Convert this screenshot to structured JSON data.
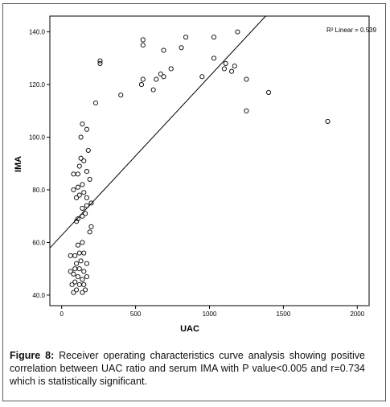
{
  "chart_data": {
    "type": "scatter",
    "xlabel": "UAC",
    "ylabel": "IMA",
    "xlim": [
      -80,
      2080
    ],
    "ylim": [
      36,
      146
    ],
    "xticks": [
      0,
      500,
      1000,
      1500,
      2000
    ],
    "xtick_labels": [
      "0",
      "500",
      "1000",
      "1500",
      "2000"
    ],
    "yticks": [
      40,
      60,
      80,
      100,
      120,
      140
    ],
    "ytick_labels": [
      "40.0",
      "60.0",
      "80.0",
      "100.0",
      "120.0",
      "140.0"
    ],
    "grid": false,
    "fit_line": {
      "label": "R² Linear = 0.539",
      "x0": -80,
      "y0": 57.9,
      "x1": 1380,
      "y1": 146
    },
    "points": [
      {
        "x": 80,
        "y": 41
      },
      {
        "x": 100,
        "y": 42
      },
      {
        "x": 140,
        "y": 41
      },
      {
        "x": 160,
        "y": 42
      },
      {
        "x": 70,
        "y": 44
      },
      {
        "x": 90,
        "y": 45
      },
      {
        "x": 120,
        "y": 44
      },
      {
        "x": 150,
        "y": 44
      },
      {
        "x": 80,
        "y": 48
      },
      {
        "x": 110,
        "y": 47
      },
      {
        "x": 140,
        "y": 46
      },
      {
        "x": 170,
        "y": 47
      },
      {
        "x": 60,
        "y": 49
      },
      {
        "x": 90,
        "y": 50
      },
      {
        "x": 120,
        "y": 50
      },
      {
        "x": 150,
        "y": 49
      },
      {
        "x": 100,
        "y": 52
      },
      {
        "x": 130,
        "y": 53
      },
      {
        "x": 170,
        "y": 52
      },
      {
        "x": 60,
        "y": 55
      },
      {
        "x": 90,
        "y": 55
      },
      {
        "x": 120,
        "y": 56
      },
      {
        "x": 150,
        "y": 56
      },
      {
        "x": 110,
        "y": 59
      },
      {
        "x": 140,
        "y": 60
      },
      {
        "x": 190,
        "y": 64
      },
      {
        "x": 200,
        "y": 66
      },
      {
        "x": 100,
        "y": 68
      },
      {
        "x": 110,
        "y": 69
      },
      {
        "x": 140,
        "y": 70
      },
      {
        "x": 160,
        "y": 71
      },
      {
        "x": 140,
        "y": 73
      },
      {
        "x": 170,
        "y": 74
      },
      {
        "x": 200,
        "y": 75
      },
      {
        "x": 100,
        "y": 77
      },
      {
        "x": 120,
        "y": 78
      },
      {
        "x": 150,
        "y": 79
      },
      {
        "x": 170,
        "y": 77
      },
      {
        "x": 80,
        "y": 80
      },
      {
        "x": 110,
        "y": 81
      },
      {
        "x": 140,
        "y": 82
      },
      {
        "x": 190,
        "y": 84
      },
      {
        "x": 80,
        "y": 86
      },
      {
        "x": 110,
        "y": 86
      },
      {
        "x": 170,
        "y": 87
      },
      {
        "x": 120,
        "y": 89
      },
      {
        "x": 150,
        "y": 91
      },
      {
        "x": 130,
        "y": 92
      },
      {
        "x": 180,
        "y": 95
      },
      {
        "x": 130,
        "y": 100
      },
      {
        "x": 170,
        "y": 103
      },
      {
        "x": 140,
        "y": 105
      },
      {
        "x": 230,
        "y": 113
      },
      {
        "x": 400,
        "y": 116
      },
      {
        "x": 620,
        "y": 118
      },
      {
        "x": 540,
        "y": 120
      },
      {
        "x": 550,
        "y": 122
      },
      {
        "x": 640,
        "y": 122
      },
      {
        "x": 690,
        "y": 123
      },
      {
        "x": 950,
        "y": 123
      },
      {
        "x": 1250,
        "y": 122
      },
      {
        "x": 670,
        "y": 124
      },
      {
        "x": 740,
        "y": 126
      },
      {
        "x": 1150,
        "y": 125
      },
      {
        "x": 1100,
        "y": 126
      },
      {
        "x": 1170,
        "y": 127
      },
      {
        "x": 1110,
        "y": 128
      },
      {
        "x": 260,
        "y": 128
      },
      {
        "x": 260,
        "y": 129
      },
      {
        "x": 1030,
        "y": 130
      },
      {
        "x": 690,
        "y": 133
      },
      {
        "x": 810,
        "y": 134
      },
      {
        "x": 550,
        "y": 135
      },
      {
        "x": 550,
        "y": 137
      },
      {
        "x": 840,
        "y": 138
      },
      {
        "x": 1030,
        "y": 138
      },
      {
        "x": 1190,
        "y": 140
      },
      {
        "x": 1400,
        "y": 117
      },
      {
        "x": 1250,
        "y": 110
      },
      {
        "x": 1800,
        "y": 106
      }
    ]
  },
  "caption": {
    "label": "Figure 8:",
    "text": " Receiver operating characteristics curve analysis showing positive correlation between UAC ratio and serum IMA with P value<0.005 and r=0.734 which is statistically significant."
  }
}
